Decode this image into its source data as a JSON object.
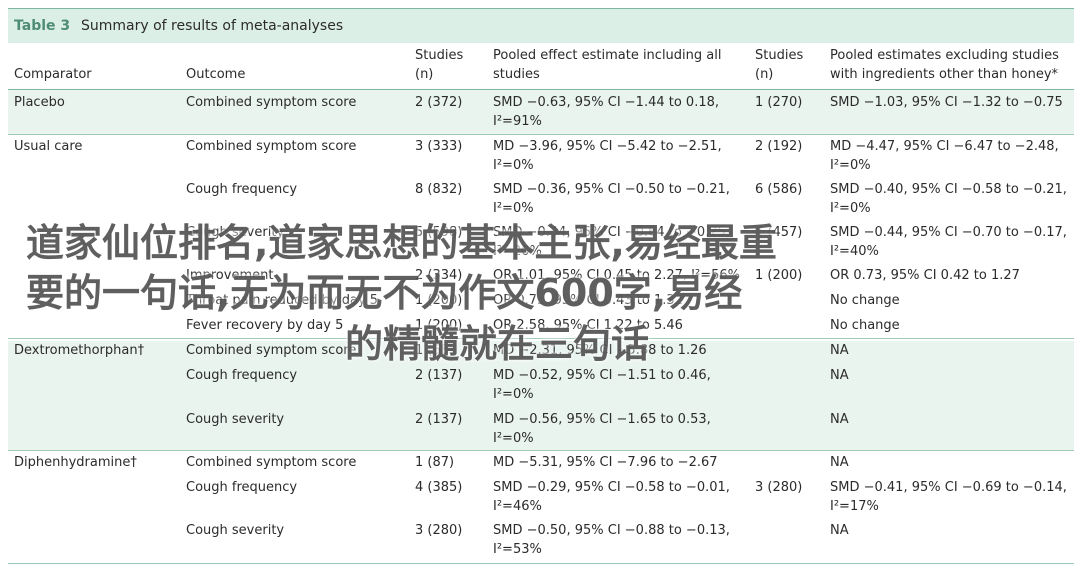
{
  "table": {
    "number": "Table 3",
    "title": "Summary of results of meta-analyses",
    "headers": {
      "comparator": "Comparator",
      "outcome": "Outcome",
      "studies1_a": "Studies",
      "studies1_b": "(n)",
      "pooled_all_a": "Pooled effect estimate including all",
      "pooled_all_b": "studies",
      "studies2_a": "Studies",
      "studies2_b": "(n)",
      "pooled_excl_a": "Pooled estimates excluding studies",
      "pooled_excl_b": "with ingredients other than honey*"
    },
    "rows": [
      {
        "comparator": "Placebo",
        "outcome": "Combined symptom score",
        "studies1": "2 (372)",
        "est1_a": "SMD −0.63, 95% CI −1.44 to 0.18,",
        "est1_b": "I²=91%",
        "studies2": "1 (270)",
        "est2_a": "SMD −1.03, 95% CI −1.32 to −0.75",
        "est2_b": ""
      },
      {
        "comparator": "Usual care",
        "outcome": "Combined symptom score",
        "studies1": "3 (333)",
        "est1_a": "MD −3.96, 95% CI −5.42 to −2.51,",
        "est1_b": "I²=0%",
        "studies2": "2 (192)",
        "est2_a": "MD −4.47, 95% CI −6.47 to −2.48,",
        "est2_b": "I²=0%"
      },
      {
        "comparator": "",
        "outcome": "Cough frequency",
        "studies1": "8 (832)",
        "est1_a": "SMD −0.36, 95% CI −0.50 to −0.21,",
        "est1_b": "I²=0%",
        "studies2": "6 (586)",
        "est2_a": "SMD −0.40, 95% CI −0.58 to −0.21,",
        "est2_b": "I²=0%"
      },
      {
        "comparator": "",
        "outcome": "Cough severity",
        "studies1": "5 (598)",
        "est1_a": "SMD −0.44, 95% CI −0.64 to −0.25,",
        "est1_b": "I²=20%",
        "studies2": "4 (457)",
        "est2_a": "SMD −0.44, 95% CI −0.70 to −0.17,",
        "est2_b": "I²=40%"
      },
      {
        "comparator": "",
        "outcome": "Improvement",
        "studies1": "2 (334)",
        "est1_a": "OR 1.01, 95% CI 0.45 to 2.27, I²=56%",
        "est1_b": "",
        "studies2": "1 (200)",
        "est2_a": "OR 0.73, 95% CI 0.42 to 1.27",
        "est2_b": ""
      },
      {
        "comparator": "",
        "outcome": "Throat pain reduced by day 5",
        "studies1": "1 (200)",
        "est1_a": "OR 0.75, 95% CI 0.43 to 1.32",
        "est1_b": "",
        "studies2": "",
        "est2_a": "No change",
        "est2_b": ""
      },
      {
        "comparator": "",
        "outcome": "Fever recovery by day 5",
        "studies1": "1 (200)",
        "est1_a": "OR 2.58, 95% CI 1.22 to 5.46",
        "est1_b": "",
        "studies2": "",
        "est2_a": "No change",
        "est2_b": ""
      },
      {
        "comparator": "Dextromethorphan†",
        "outcome": "Combined symptom score",
        "studies1": "1 (68)",
        "est1_a": "MD −2.31, 95% CI −5.88 to 1.26",
        "est1_b": "",
        "studies2": "",
        "est2_a": "NA",
        "est2_b": ""
      },
      {
        "comparator": "",
        "outcome": "Cough frequency",
        "studies1": "2 (137)",
        "est1_a": "MD −0.52, 95% CI −1.51 to 0.46,",
        "est1_b": "I²=0%",
        "studies2": "",
        "est2_a": "NA",
        "est2_b": ""
      },
      {
        "comparator": "",
        "outcome": "Cough severity",
        "studies1": "2 (137)",
        "est1_a": "MD −0.56, 95% CI −1.65 to 0.53,",
        "est1_b": "I²=0%",
        "studies2": "",
        "est2_a": "NA",
        "est2_b": ""
      },
      {
        "comparator": "Diphenhydramine†",
        "outcome": "Combined symptom score",
        "studies1": "1 (87)",
        "est1_a": "MD −5.31, 95% CI −7.96 to −2.67",
        "est1_b": "",
        "studies2": "",
        "est2_a": "NA",
        "est2_b": ""
      },
      {
        "comparator": "",
        "outcome": "Cough frequency",
        "studies1": "4 (385)",
        "est1_a": "SMD −0.29, 95% CI −0.58 to −0.01,",
        "est1_b": "I²=46%",
        "studies2": "3 (280)",
        "est2_a": "SMD −0.41, 95% CI −0.69 to −0.14,",
        "est2_b": "I²=17%"
      },
      {
        "comparator": "",
        "outcome": "Cough severity",
        "studies1": "3 (280)",
        "est1_a": "SMD −0.50, 95% CI −0.88 to −0.13,",
        "est1_b": "I²=53%",
        "studies2": "",
        "est2_a": "NA",
        "est2_b": ""
      }
    ]
  },
  "overlay": {
    "line1": "道家仙位排名,道家思想的基本主张,易经最重",
    "line2": "要的一句话,无为而无不为作文600字,易经",
    "line3": "的精髓就在三句话"
  }
}
